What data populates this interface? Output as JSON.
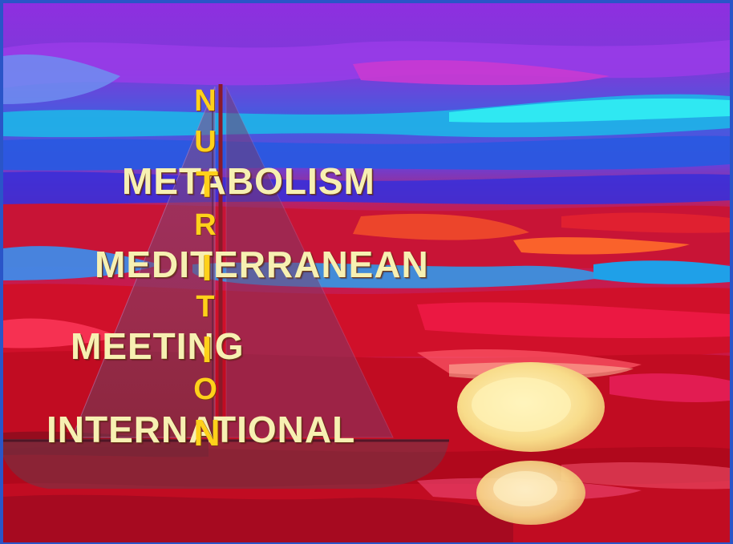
{
  "vertical_word": [
    "N",
    "U",
    "T",
    "R",
    "I",
    "T",
    "I",
    "O",
    "N"
  ],
  "words": {
    "metabolism": "METABOLISM",
    "mediterranean": "MEDITERRANEAN",
    "meeting": "MEETING",
    "international": "INTERNATIONAL"
  },
  "colors": {
    "word_text": "#f7f0b2",
    "vertical_letters": "#ffd11a",
    "sky_top": "#8a2be2",
    "sea_red": "#d8102b"
  }
}
